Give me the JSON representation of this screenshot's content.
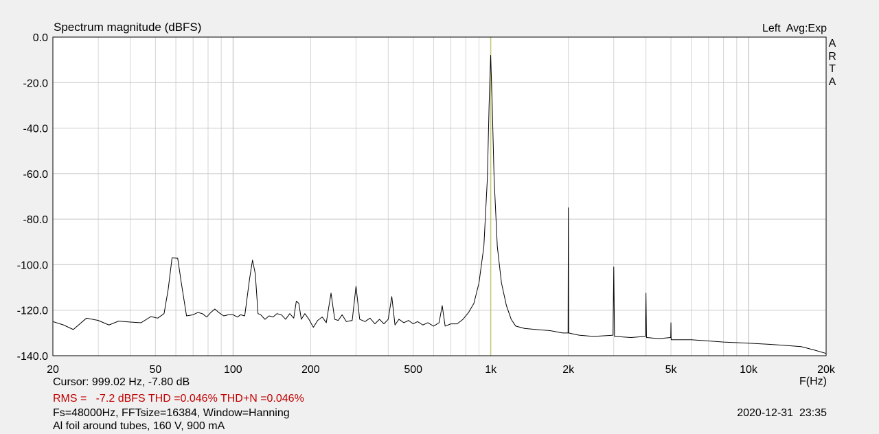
{
  "chart_data": {
    "type": "line",
    "title": "Spectrum magnitude (dBFS)",
    "xlabel": "F(Hz)",
    "ylabel": "",
    "x_scale": "log",
    "xlim": [
      20,
      20000
    ],
    "ylim": [
      -140,
      0
    ],
    "grid": true,
    "x_tick_labels": [
      "20",
      "50",
      "100",
      "200",
      "500",
      "1k",
      "2k",
      "5k",
      "10k",
      "20k"
    ],
    "x_tick_values": [
      20,
      50,
      100,
      200,
      500,
      1000,
      2000,
      5000,
      10000,
      20000
    ],
    "y_tick_labels": [
      "0.0",
      "-20.0",
      "-40.0",
      "-60.0",
      "-80.0",
      "-100.0",
      "-120.0",
      "-140.0"
    ],
    "y_tick_values": [
      0,
      -20,
      -40,
      -60,
      -80,
      -100,
      -120,
      -140
    ],
    "cursor_x": 999.02,
    "series": [
      {
        "color": "#000000",
        "points": [
          [
            20,
            -125
          ],
          [
            22,
            -126.5
          ],
          [
            24,
            -128.5
          ],
          [
            27,
            -123.5
          ],
          [
            30,
            -124.5
          ],
          [
            33,
            -126.5
          ],
          [
            36,
            -124.8
          ],
          [
            40,
            -125.2
          ],
          [
            44,
            -125.5
          ],
          [
            48,
            -122.8
          ],
          [
            51,
            -123.5
          ],
          [
            54,
            -121.5
          ],
          [
            56,
            -111
          ],
          [
            58,
            -97
          ],
          [
            61,
            -97.2
          ],
          [
            63,
            -108
          ],
          [
            66,
            -122.5
          ],
          [
            70,
            -122
          ],
          [
            73,
            -121
          ],
          [
            76,
            -121.5
          ],
          [
            79,
            -123
          ],
          [
            82,
            -121
          ],
          [
            85,
            -119.5
          ],
          [
            88,
            -121
          ],
          [
            92,
            -122.5
          ],
          [
            96,
            -122
          ],
          [
            100,
            -122
          ],
          [
            104,
            -123
          ],
          [
            107,
            -122
          ],
          [
            111,
            -122.5
          ],
          [
            116,
            -106
          ],
          [
            119,
            -98
          ],
          [
            122,
            -104
          ],
          [
            125,
            -121.5
          ],
          [
            128,
            -122
          ],
          [
            133,
            -124
          ],
          [
            138,
            -122.5
          ],
          [
            143,
            -123
          ],
          [
            148,
            -121.5
          ],
          [
            154,
            -122
          ],
          [
            160,
            -124
          ],
          [
            166,
            -121.5
          ],
          [
            172,
            -123.5
          ],
          [
            176,
            -116
          ],
          [
            180,
            -117
          ],
          [
            184,
            -124
          ],
          [
            190,
            -121.5
          ],
          [
            197,
            -124
          ],
          [
            205,
            -127.5
          ],
          [
            213,
            -124.5
          ],
          [
            222,
            -123
          ],
          [
            230,
            -125.5
          ],
          [
            240,
            -112.5
          ],
          [
            248,
            -124
          ],
          [
            256,
            -124.5
          ],
          [
            265,
            -122
          ],
          [
            275,
            -125
          ],
          [
            290,
            -124.5
          ],
          [
            300,
            -109.5
          ],
          [
            310,
            -124
          ],
          [
            325,
            -125
          ],
          [
            340,
            -123.5
          ],
          [
            355,
            -126
          ],
          [
            370,
            -124
          ],
          [
            385,
            -126
          ],
          [
            400,
            -124
          ],
          [
            413,
            -114
          ],
          [
            425,
            -126.5
          ],
          [
            440,
            -124
          ],
          [
            460,
            -125.5
          ],
          [
            480,
            -124.5
          ],
          [
            500,
            -126
          ],
          [
            520,
            -125
          ],
          [
            545,
            -126.5
          ],
          [
            570,
            -125.5
          ],
          [
            600,
            -127
          ],
          [
            630,
            -125.5
          ],
          [
            648,
            -118
          ],
          [
            665,
            -127
          ],
          [
            700,
            -126
          ],
          [
            740,
            -126
          ],
          [
            780,
            -124
          ],
          [
            820,
            -121
          ],
          [
            860,
            -117
          ],
          [
            900,
            -108
          ],
          [
            940,
            -92
          ],
          [
            970,
            -62
          ],
          [
            985,
            -30
          ],
          [
            999,
            -8
          ],
          [
            1013,
            -30
          ],
          [
            1030,
            -62
          ],
          [
            1060,
            -92
          ],
          [
            1100,
            -108
          ],
          [
            1150,
            -118
          ],
          [
            1200,
            -124
          ],
          [
            1250,
            -127
          ],
          [
            1350,
            -128
          ],
          [
            1500,
            -128.5
          ],
          [
            1700,
            -129
          ],
          [
            1900,
            -130
          ],
          [
            1995,
            -130
          ],
          [
            2000,
            -75
          ],
          [
            2005,
            -130
          ],
          [
            2200,
            -131
          ],
          [
            2500,
            -131.5
          ],
          [
            2980,
            -131
          ],
          [
            3000,
            -101
          ],
          [
            3020,
            -131.5
          ],
          [
            3500,
            -132
          ],
          [
            3980,
            -131.5
          ],
          [
            4000,
            -112.5
          ],
          [
            4020,
            -132
          ],
          [
            4500,
            -132.5
          ],
          [
            4990,
            -132
          ],
          [
            5000,
            -125.5
          ],
          [
            5010,
            -133
          ],
          [
            6000,
            -133
          ],
          [
            7000,
            -133.5
          ],
          [
            8000,
            -134
          ],
          [
            10000,
            -134.5
          ],
          [
            12000,
            -135
          ],
          [
            14000,
            -135.5
          ],
          [
            16000,
            -136
          ],
          [
            18000,
            -137.5
          ],
          [
            20000,
            -139
          ]
        ]
      }
    ]
  },
  "header_right": "Left  Avg:Exp",
  "brand": "ARTA",
  "cursor_text": "Cursor: 999.02 Hz, -7.80 dB",
  "rms_text": "RMS =   -7.2 dBFS THD =0.046% THD+N =0.046%",
  "settings_text": "Fs=48000Hz, FFTsize=16384, Window=Hanning",
  "timestamp": "2020-12-31  23:35",
  "note_text": "Al foil around tubes, 160 V, 900 mA"
}
